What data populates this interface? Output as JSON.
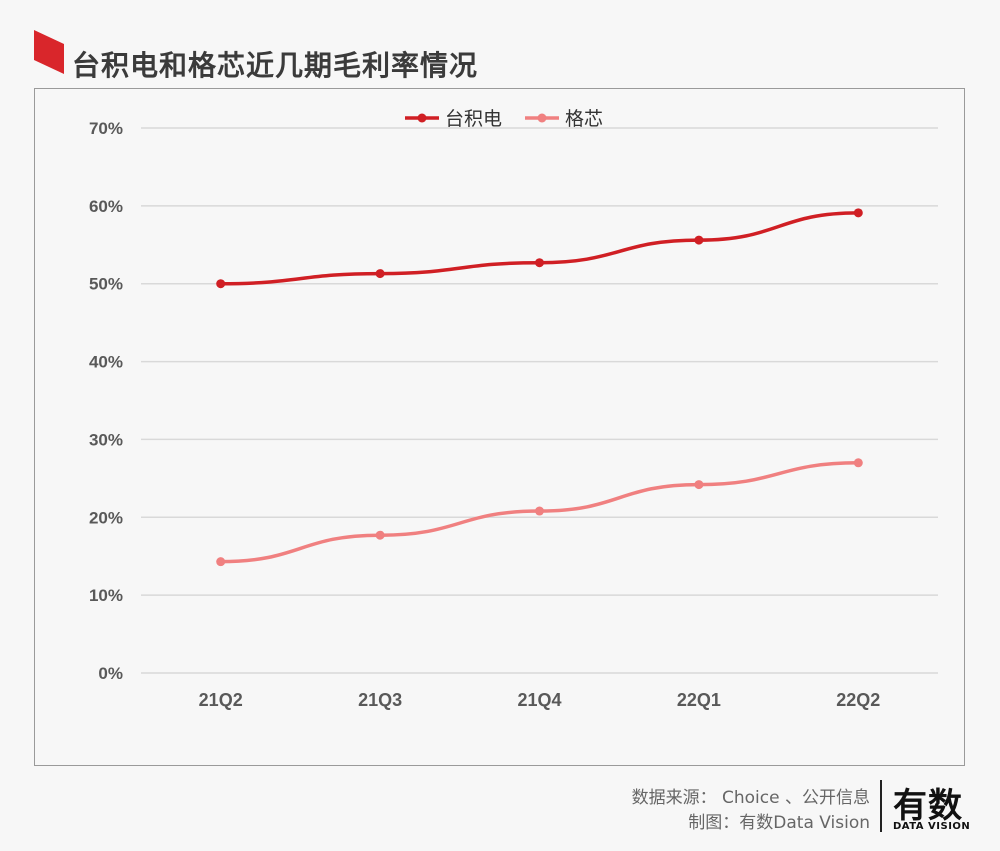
{
  "title": "台积电和格芯近几期毛利率情况",
  "colors": {
    "accent": "#d9262b",
    "tsmc": "#d01f24",
    "gf": "#f08080",
    "grid": "#d9d9d9",
    "text": "#595959"
  },
  "chart_data": {
    "type": "line",
    "title": "",
    "categories": [
      "21Q2",
      "21Q3",
      "21Q4",
      "22Q1",
      "22Q2"
    ],
    "series": [
      {
        "name": "台积电",
        "values": [
          50.0,
          51.3,
          52.7,
          55.6,
          59.1
        ],
        "color": "#d01f24"
      },
      {
        "name": "格芯",
        "values": [
          14.3,
          17.7,
          20.8,
          24.2,
          27.0
        ],
        "color": "#f08080"
      }
    ],
    "ylim": [
      0,
      70
    ],
    "yticks": [
      "0%",
      "10%",
      "20%",
      "30%",
      "40%",
      "50%",
      "60%",
      "70%"
    ],
    "grid": true,
    "legend": "top-center"
  },
  "footer": {
    "source_line": "数据来源： Choice 、公开信息",
    "maker_line": "制图：有数Data Vision"
  },
  "logo": {
    "cn": "有数",
    "en": "DATA VISION"
  }
}
